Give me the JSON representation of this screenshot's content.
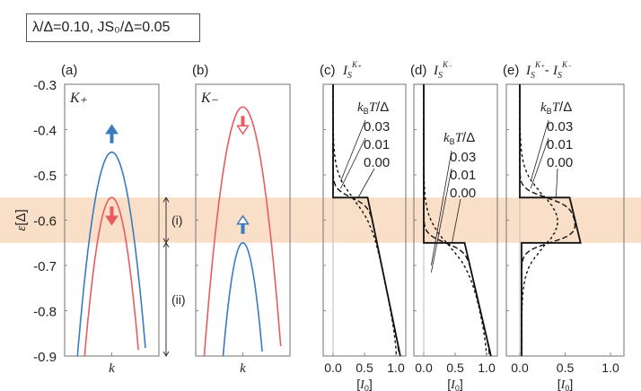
{
  "parameter_box": "λ/Δ=0.10,  JS₀/Δ=0.05",
  "colors": {
    "spin_up": "#3a7bc0",
    "spin_down": "#ea5b5f",
    "band_highlight": "#f9dfc8",
    "frame": "#888888"
  },
  "chart_data": [
    {
      "type": "line",
      "panel": "(a)",
      "valley": "K₊",
      "xlabel": "k",
      "ylabel": "ε[Δ]",
      "ylim": [
        -0.9,
        -0.3
      ],
      "yticks": [
        "-0.3",
        "-0.4",
        "-0.5",
        "-0.6",
        "-0.7",
        "-0.8",
        "-0.9"
      ],
      "bands": [
        {
          "spin": "up",
          "color": "#3a7bc0",
          "peak": -0.45,
          "arrow": "filled-up"
        },
        {
          "spin": "down",
          "color": "#ea5b5f",
          "peak": -0.55,
          "arrow": "filled-down"
        }
      ],
      "regions": [
        {
          "label": "(i)",
          "range": [
            -0.65,
            -0.55
          ]
        },
        {
          "label": "(ii)",
          "range": [
            -0.9,
            -0.65
          ]
        }
      ]
    },
    {
      "type": "line",
      "panel": "(b)",
      "valley": "K₋",
      "xlabel": "k",
      "ylim": [
        -0.9,
        -0.3
      ],
      "bands": [
        {
          "spin": "down",
          "color": "#ea5b5f",
          "peak": -0.35,
          "arrow": "hollow-down"
        },
        {
          "spin": "up",
          "color": "#3a7bc0",
          "peak": -0.65,
          "arrow": "hollow-up"
        }
      ]
    },
    {
      "type": "line",
      "panel": "(c)",
      "title": "I_S^{K+}",
      "xlabel": "[I₀]",
      "xlim": [
        0,
        1
      ],
      "xticks": [
        "0.0",
        "0.5",
        "1.0"
      ],
      "legend_title": "k_BT/Δ",
      "temperatures": [
        "0.03",
        "0.01",
        "0.00"
      ],
      "zero_T_curve": [
        [
          0,
          -0.3
        ],
        [
          0,
          -0.55
        ],
        [
          0.55,
          -0.55
        ],
        [
          1.07,
          -0.9
        ]
      ]
    },
    {
      "type": "line",
      "panel": "(d)",
      "title": "I_S^{K-}",
      "xlabel": "[I₀]",
      "xlim": [
        0,
        1
      ],
      "xticks": [
        "0.0",
        "0.5",
        "1.0"
      ],
      "legend_title": "k_BT/Δ",
      "temperatures": [
        "0.03",
        "0.01",
        "0.00"
      ],
      "zero_T_curve": [
        [
          0,
          -0.3
        ],
        [
          0,
          -0.65
        ],
        [
          0.65,
          -0.65
        ],
        [
          1.07,
          -0.9
        ]
      ]
    },
    {
      "type": "line",
      "panel": "(e)",
      "title": "I_S^{K+} - I_S^{K-}",
      "xlabel": "[I₀]",
      "xlim": [
        0,
        1
      ],
      "xticks": [
        "0.0",
        "0.5",
        "1.0"
      ],
      "legend_title": "k_BT/Δ",
      "temperatures": [
        "0.03",
        "0.01",
        "0.00"
      ],
      "zero_T_curve": [
        [
          0,
          -0.3
        ],
        [
          0,
          -0.55
        ],
        [
          0.55,
          -0.55
        ],
        [
          0.67,
          -0.65
        ],
        [
          0.02,
          -0.65
        ],
        [
          0.02,
          -0.9
        ]
      ]
    }
  ]
}
